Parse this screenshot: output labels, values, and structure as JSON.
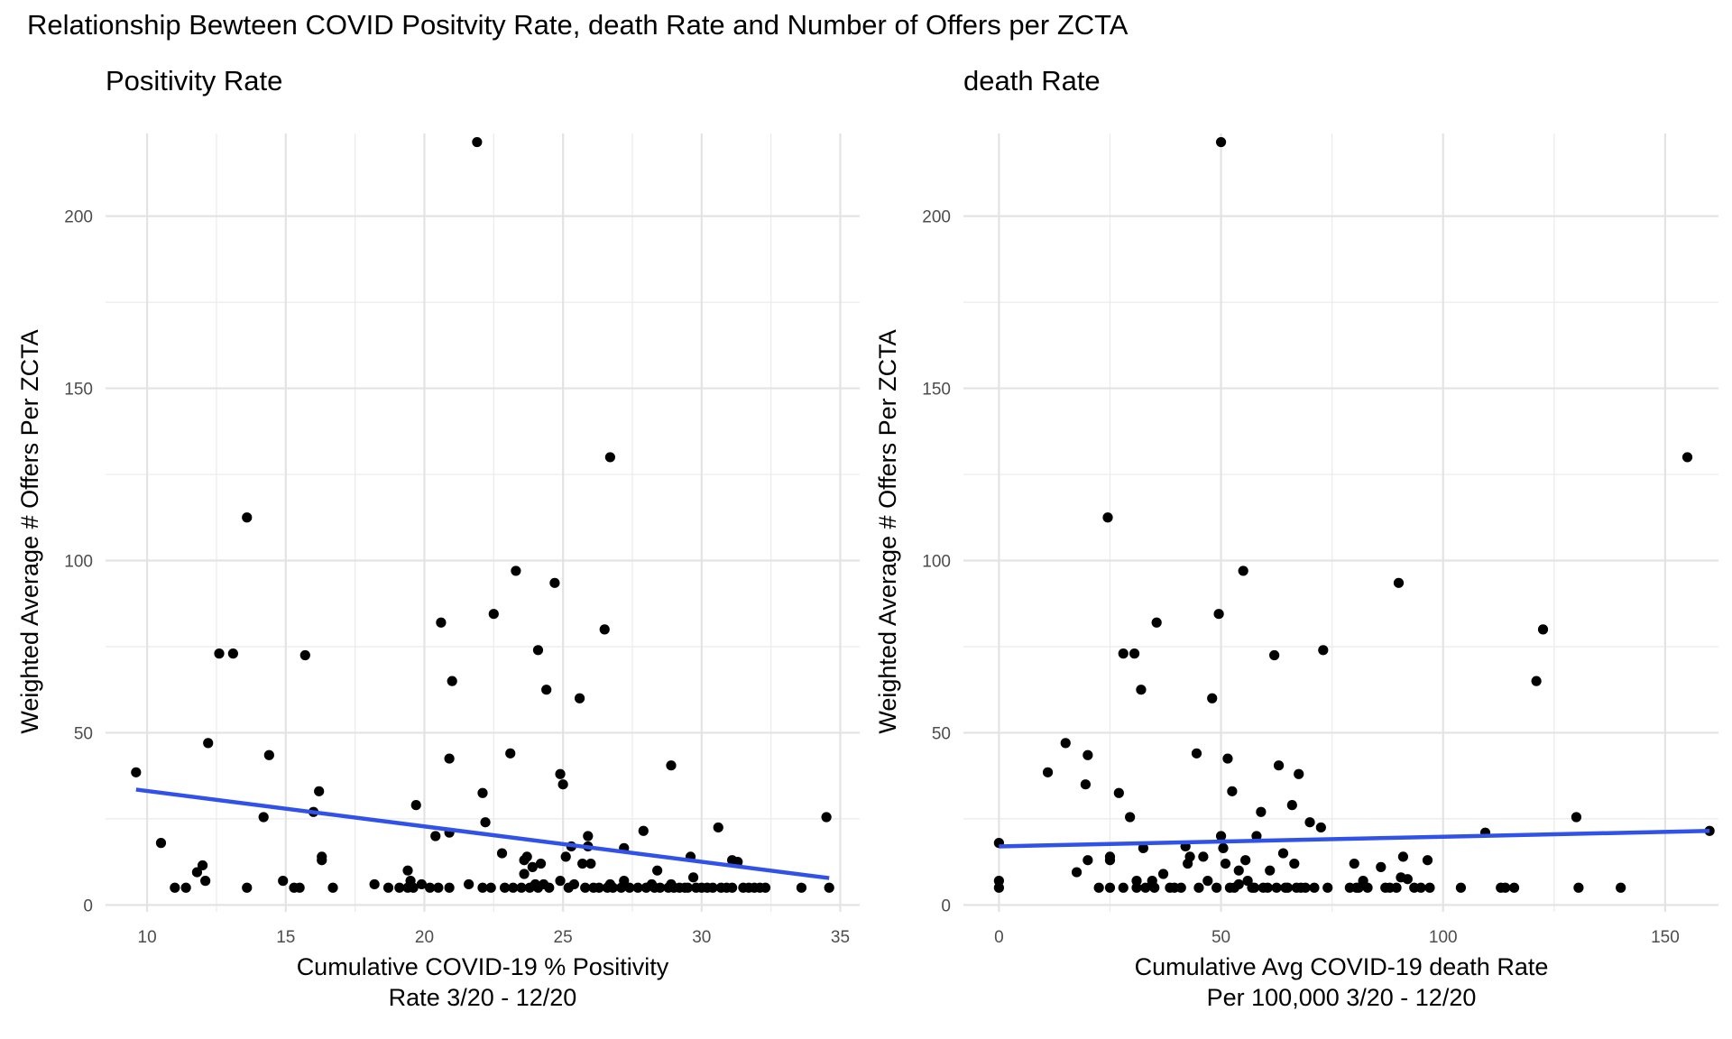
{
  "title": "Relationship Bewteen COVID Positvity Rate, death Rate and Number of Offers per ZCTA",
  "chart_data": [
    {
      "type": "scatter",
      "subtitle": "Positivity Rate",
      "xlabel": [
        "Cumulative COVID-19 % Positivity",
        "Rate 3/20 - 12/20"
      ],
      "ylabel": "Weighted Average # Offers Per ZCTA",
      "xlim": [
        8.5,
        35.7
      ],
      "ylim": [
        -2,
        224
      ],
      "xticks": [
        10,
        15,
        20,
        25,
        30,
        35
      ],
      "yticks": [
        0,
        50,
        100,
        150,
        200
      ],
      "grid": true,
      "trend_line": {
        "x": [
          9.6,
          34.6
        ],
        "y": [
          33.5,
          7.8
        ],
        "color": "#3152e8"
      },
      "point_color": "#000000",
      "points": [
        [
          9.6,
          38.5
        ],
        [
          10.5,
          18
        ],
        [
          11,
          5
        ],
        [
          11.4,
          5
        ],
        [
          11.8,
          9.5
        ],
        [
          12,
          11.5
        ],
        [
          12.1,
          7
        ],
        [
          12.2,
          47
        ],
        [
          12.6,
          73
        ],
        [
          13.1,
          73
        ],
        [
          13.6,
          112.5
        ],
        [
          13.6,
          5
        ],
        [
          14.2,
          25.5
        ],
        [
          14.4,
          43.5
        ],
        [
          14.9,
          7
        ],
        [
          15.3,
          5
        ],
        [
          15.5,
          5
        ],
        [
          15.7,
          72.5
        ],
        [
          16,
          27
        ],
        [
          16.2,
          33
        ],
        [
          16.3,
          14
        ],
        [
          16.3,
          13
        ],
        [
          16.7,
          5
        ],
        [
          18.2,
          6
        ],
        [
          18.7,
          5
        ],
        [
          19.1,
          5
        ],
        [
          19.4,
          10
        ],
        [
          19.4,
          5
        ],
        [
          19.5,
          7
        ],
        [
          19.6,
          5
        ],
        [
          19.7,
          29
        ],
        [
          19.9,
          6
        ],
        [
          20.2,
          5
        ],
        [
          20.4,
          20
        ],
        [
          20.5,
          5
        ],
        [
          20.6,
          82
        ],
        [
          20.9,
          42.5
        ],
        [
          20.9,
          21
        ],
        [
          20.9,
          5
        ],
        [
          21,
          65
        ],
        [
          21.6,
          6
        ],
        [
          21.9,
          221.5
        ],
        [
          22.1,
          5
        ],
        [
          22.1,
          32.5
        ],
        [
          22.2,
          24
        ],
        [
          22.4,
          5
        ],
        [
          22.5,
          84.5
        ],
        [
          22.8,
          15
        ],
        [
          22.9,
          5
        ],
        [
          23.1,
          44
        ],
        [
          23.2,
          5
        ],
        [
          23.3,
          97
        ],
        [
          23.5,
          5
        ],
        [
          23.6,
          13
        ],
        [
          23.6,
          9
        ],
        [
          23.7,
          14
        ],
        [
          23.8,
          5
        ],
        [
          23.9,
          11
        ],
        [
          24,
          6
        ],
        [
          24.1,
          74
        ],
        [
          24.1,
          5
        ],
        [
          24.2,
          12
        ],
        [
          24.3,
          6
        ],
        [
          24.4,
          62.5
        ],
        [
          24.5,
          5
        ],
        [
          24.7,
          93.5
        ],
        [
          24.9,
          38
        ],
        [
          24.9,
          7
        ],
        [
          25,
          35
        ],
        [
          25.1,
          14
        ],
        [
          25.2,
          5
        ],
        [
          25.3,
          17
        ],
        [
          25.4,
          6
        ],
        [
          25.6,
          60
        ],
        [
          25.7,
          12
        ],
        [
          25.8,
          5
        ],
        [
          25.9,
          20
        ],
        [
          25.9,
          17
        ],
        [
          26,
          12
        ],
        [
          26.1,
          5
        ],
        [
          26.3,
          5
        ],
        [
          26.5,
          80
        ],
        [
          26.6,
          5
        ],
        [
          26.7,
          130
        ],
        [
          26.7,
          6
        ],
        [
          26.8,
          5
        ],
        [
          27.1,
          5
        ],
        [
          27.2,
          16.5
        ],
        [
          27.2,
          7
        ],
        [
          27.4,
          5
        ],
        [
          27.7,
          5
        ],
        [
          27.9,
          21.5
        ],
        [
          28,
          5
        ],
        [
          28.2,
          6
        ],
        [
          28.3,
          5
        ],
        [
          28.4,
          10
        ],
        [
          28.5,
          5
        ],
        [
          28.8,
          5
        ],
        [
          28.9,
          40.5
        ],
        [
          28.9,
          6
        ],
        [
          29,
          5
        ],
        [
          29.2,
          5
        ],
        [
          29.4,
          5
        ],
        [
          29.5,
          5
        ],
        [
          29.6,
          14
        ],
        [
          29.7,
          8
        ],
        [
          29.8,
          5
        ],
        [
          30,
          5
        ],
        [
          30.2,
          5
        ],
        [
          30.4,
          5
        ],
        [
          30.6,
          22.5
        ],
        [
          30.7,
          5
        ],
        [
          30.9,
          5
        ],
        [
          31.1,
          13
        ],
        [
          31.1,
          5
        ],
        [
          31.3,
          12.5
        ],
        [
          31.5,
          5
        ],
        [
          31.7,
          5
        ],
        [
          31.9,
          5
        ],
        [
          32.1,
          5
        ],
        [
          32.3,
          5
        ],
        [
          33.6,
          5
        ],
        [
          34.5,
          25.5
        ],
        [
          34.6,
          5
        ]
      ]
    },
    {
      "type": "scatter",
      "subtitle": "death Rate",
      "xlabel": [
        "Cumulative Avg COVID-19 death Rate",
        "Per 100,000 3/20 - 12/20"
      ],
      "ylabel": "Weighted Average # Offers Per ZCTA",
      "xlim": [
        -8,
        162
      ],
      "ylim": [
        -2,
        224
      ],
      "xticks": [
        0,
        50,
        100,
        150
      ],
      "yticks": [
        0,
        50,
        100,
        150,
        200
      ],
      "grid": true,
      "trend_line": {
        "x": [
          0,
          160
        ],
        "y": [
          17,
          21.5
        ],
        "color": "#3152e8"
      },
      "point_color": "#000000",
      "points": [
        [
          0,
          18
        ],
        [
          0,
          7
        ],
        [
          0,
          5
        ],
        [
          11,
          38.5
        ],
        [
          15,
          47
        ],
        [
          17.5,
          9.5
        ],
        [
          19.5,
          35
        ],
        [
          20,
          13
        ],
        [
          20,
          43.5
        ],
        [
          22.5,
          5
        ],
        [
          24.5,
          112.5
        ],
        [
          25,
          14
        ],
        [
          25,
          13
        ],
        [
          25,
          5
        ],
        [
          27,
          32.5
        ],
        [
          28,
          73
        ],
        [
          28,
          5
        ],
        [
          29.5,
          25.5
        ],
        [
          30.5,
          73
        ],
        [
          31,
          7
        ],
        [
          31,
          5
        ],
        [
          32,
          62.5
        ],
        [
          32.5,
          16.5
        ],
        [
          33,
          5
        ],
        [
          34.5,
          7
        ],
        [
          35,
          5
        ],
        [
          35.5,
          82
        ],
        [
          37,
          9
        ],
        [
          38.5,
          5
        ],
        [
          39.5,
          5
        ],
        [
          41,
          5
        ],
        [
          42,
          17
        ],
        [
          42.5,
          12
        ],
        [
          43,
          14
        ],
        [
          44.5,
          44
        ],
        [
          45,
          5
        ],
        [
          46,
          14
        ],
        [
          47,
          7
        ],
        [
          48,
          60
        ],
        [
          49,
          5
        ],
        [
          49.5,
          84.5
        ],
        [
          50,
          221.5
        ],
        [
          50,
          20
        ],
        [
          50.5,
          16.5
        ],
        [
          51,
          12
        ],
        [
          51.5,
          42.5
        ],
        [
          52,
          5
        ],
        [
          52.5,
          33
        ],
        [
          53,
          5
        ],
        [
          54,
          10
        ],
        [
          54,
          6
        ],
        [
          55,
          97
        ],
        [
          55.5,
          13
        ],
        [
          56,
          7
        ],
        [
          57,
          5
        ],
        [
          57.5,
          5
        ],
        [
          58,
          20
        ],
        [
          59,
          27
        ],
        [
          59.5,
          5
        ],
        [
          60.5,
          5
        ],
        [
          61,
          10
        ],
        [
          62,
          72.5
        ],
        [
          62.5,
          5
        ],
        [
          63,
          40.5
        ],
        [
          64,
          15
        ],
        [
          64.5,
          5
        ],
        [
          65,
          5
        ],
        [
          66,
          29
        ],
        [
          66.5,
          12
        ],
        [
          67,
          5
        ],
        [
          67.5,
          38
        ],
        [
          68,
          5
        ],
        [
          69,
          5
        ],
        [
          70,
          24
        ],
        [
          71,
          5
        ],
        [
          72.5,
          22.5
        ],
        [
          73,
          74
        ],
        [
          74,
          5
        ],
        [
          79,
          5
        ],
        [
          80,
          12
        ],
        [
          80.5,
          5
        ],
        [
          81,
          5
        ],
        [
          82,
          7
        ],
        [
          83,
          5
        ],
        [
          86,
          11
        ],
        [
          87,
          5
        ],
        [
          88,
          5
        ],
        [
          89.5,
          5
        ],
        [
          90,
          93.5
        ],
        [
          90.5,
          8
        ],
        [
          91,
          14
        ],
        [
          92,
          7.5
        ],
        [
          93.5,
          5
        ],
        [
          95,
          5
        ],
        [
          96.5,
          13
        ],
        [
          97,
          5
        ],
        [
          104,
          5
        ],
        [
          109.5,
          21
        ],
        [
          113,
          5
        ],
        [
          114,
          5
        ],
        [
          116,
          5
        ],
        [
          121,
          65
        ],
        [
          122.5,
          80
        ],
        [
          130,
          25.5
        ],
        [
          130.5,
          5
        ],
        [
          140,
          5
        ],
        [
          155,
          130
        ],
        [
          160,
          21.5
        ]
      ]
    }
  ]
}
